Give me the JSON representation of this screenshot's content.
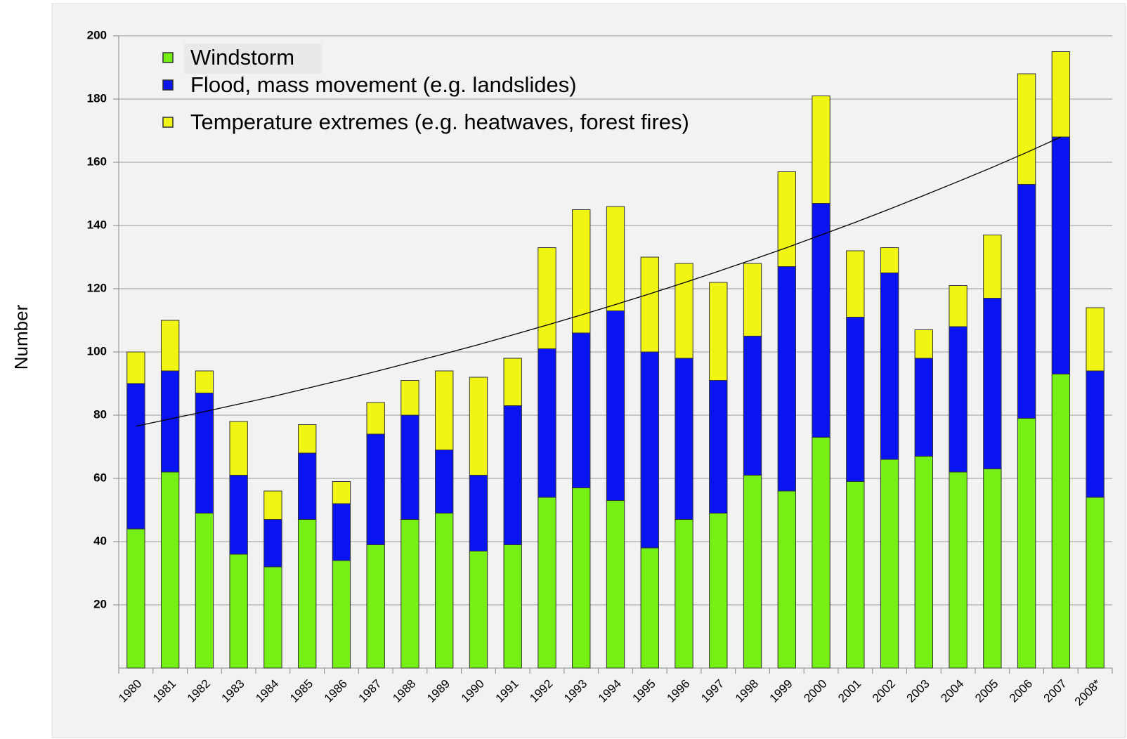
{
  "chart_data": {
    "type": "stacked-bar",
    "y_label": "Number",
    "categories": [
      "1980",
      "1981",
      "1982",
      "1983",
      "1984",
      "1985",
      "1986",
      "1987",
      "1988",
      "1989",
      "1990",
      "1991",
      "1992",
      "1993",
      "1994",
      "1995",
      "1996",
      "1997",
      "1998",
      "1999",
      "2000",
      "2001",
      "2002",
      "2003",
      "2004",
      "2005",
      "2006",
      "2007",
      "2008*"
    ],
    "series": [
      {
        "name": "Windstorm",
        "color": "#76f014",
        "values": [
          44,
          62,
          49,
          36,
          32,
          47,
          34,
          39,
          47,
          49,
          37,
          39,
          54,
          57,
          53,
          38,
          47,
          49,
          61,
          56,
          73,
          59,
          66,
          67,
          62,
          63,
          79,
          93,
          54
        ]
      },
      {
        "name": "Flood, mass movement (e.g. landslides)",
        "color": "#0a14f0",
        "values": [
          46,
          32,
          38,
          25,
          15,
          21,
          18,
          35,
          33,
          20,
          24,
          44,
          47,
          49,
          60,
          62,
          51,
          42,
          44,
          71,
          74,
          52,
          59,
          31,
          46,
          54,
          74,
          75,
          40
        ]
      },
      {
        "name": "Temperature extremes (e.g. heatwaves, forest fires)",
        "color": "#f0f514",
        "values": [
          10,
          16,
          7,
          17,
          9,
          9,
          7,
          10,
          11,
          25,
          31,
          15,
          32,
          39,
          33,
          30,
          30,
          31,
          23,
          30,
          34,
          21,
          8,
          9,
          13,
          20,
          35,
          27,
          20
        ]
      }
    ],
    "trendline": {
      "color": "#000000",
      "values": [
        76.5,
        78.8,
        81.1,
        83.5,
        85.9,
        88.5,
        91.1,
        93.8,
        96.6,
        99.4,
        102.3,
        105.4,
        108.5,
        111.7,
        115.0,
        118.4,
        121.9,
        125.5,
        129.2,
        133.0,
        137.0,
        141.0,
        145.2,
        149.5,
        153.9,
        158.4,
        163.1,
        168.0,
        null
      ]
    },
    "ylim": [
      0,
      200
    ],
    "yticks": [
      20,
      40,
      60,
      80,
      100,
      120,
      140,
      160,
      180,
      200
    ],
    "grid": true
  }
}
